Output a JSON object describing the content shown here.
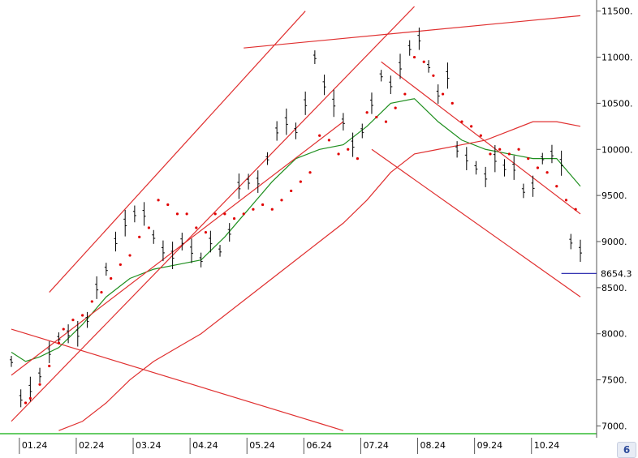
{
  "colors": {
    "price": "#000000",
    "ma_short": "#1f8f1f",
    "ma_long": "#e03030",
    "sar": "#e00000",
    "channel": "#e03030",
    "baseline": "#66cc66",
    "last": "#1a1aa8",
    "axis": "#555555"
  },
  "icons": {
    "corner": "zoom-settings-icon"
  },
  "chart_data": {
    "type": "line",
    "title": "",
    "xlabel": "",
    "ylabel": "",
    "ylim": [
      6960,
      11550
    ],
    "grid": false,
    "x_ticks": [
      "01.24",
      "02.24",
      "03.24",
      "04.24",
      "05.24",
      "06.24",
      "07.24",
      "08.24",
      "09.24",
      "10.24"
    ],
    "y_ticks": [
      "11500.",
      "11000.",
      "10500.",
      "10000.",
      "9500.",
      "9000.",
      "8500.",
      "8000.",
      "7500.",
      "7000."
    ],
    "y_tick_values": [
      11500,
      11000,
      10500,
      10000,
      9500,
      9000,
      8500,
      8000,
      7500,
      7000
    ],
    "last_value_label": "8654.3",
    "last_value": 8654.3,
    "series": [
      {
        "kind": "ohlc-bars",
        "x": [
          0.0,
          0.2,
          0.4,
          0.6,
          0.8,
          1.0,
          1.2,
          1.4,
          1.6,
          1.8,
          2.0,
          2.2,
          2.4,
          2.6,
          2.8,
          3.0,
          3.2,
          3.4,
          3.6,
          3.8,
          4.0,
          4.2,
          4.4,
          4.6,
          4.8,
          5.0,
          5.2,
          5.4,
          5.6,
          5.8,
          6.0,
          6.2,
          6.4,
          6.6,
          6.8,
          7.0,
          7.2,
          7.4,
          7.6,
          7.8,
          8.0,
          8.2,
          8.4,
          8.6,
          8.8,
          9.0,
          9.2,
          9.4,
          9.6,
          9.8,
          10.0,
          10.2,
          10.4,
          10.6,
          10.8,
          11.0,
          11.2,
          11.4,
          11.6,
          11.8,
          12.0
        ],
        "values": [
          7700,
          7300,
          7400,
          7550,
          7800,
          7950,
          8000,
          8000,
          8150,
          8500,
          8700,
          9000,
          9200,
          9300,
          9300,
          9050,
          8900,
          8850,
          9000,
          8900,
          8800,
          9000,
          8900,
          9100,
          9600,
          9650,
          9650,
          9900,
          10200,
          10300,
          10200,
          10500,
          11000,
          10700,
          10500,
          10300,
          10050,
          10200,
          10500,
          10800,
          10700,
          10900,
          11100,
          11200,
          10900,
          10600,
          10800,
          10000,
          9900,
          9800,
          9700,
          9900,
          9800,
          9800,
          9550,
          9600,
          9900,
          9950,
          9850,
          9000,
          8900
        ]
      },
      {
        "kind": "moving-average-short",
        "x": [
          0,
          0.3,
          0.6,
          1.0,
          1.5,
          2.0,
          2.5,
          3.0,
          3.5,
          4.0,
          4.5,
          5.0,
          5.5,
          6.0,
          6.5,
          7.0,
          7.5,
          8.0,
          8.5,
          9.0,
          9.5,
          10.0,
          10.5,
          11.0,
          11.5,
          12.0
        ],
        "values": [
          7800,
          7700,
          7750,
          7850,
          8100,
          8400,
          8600,
          8700,
          8750,
          8800,
          9050,
          9350,
          9650,
          9900,
          10000,
          10050,
          10250,
          10500,
          10550,
          10300,
          10100,
          10000,
          9950,
          9900,
          9900,
          9600
        ]
      },
      {
        "kind": "moving-average-long",
        "x": [
          1.0,
          1.5,
          2.0,
          2.5,
          3.0,
          3.5,
          4.0,
          4.5,
          5.0,
          5.5,
          6.0,
          6.5,
          7.0,
          7.5,
          8.0,
          8.5,
          9.0,
          9.5,
          10.0,
          10.5,
          11.0,
          11.5,
          12.0
        ],
        "values": [
          6950,
          7050,
          7250,
          7500,
          7700,
          7850,
          8000,
          8200,
          8400,
          8600,
          8800,
          9000,
          9200,
          9450,
          9750,
          9950,
          10000,
          10050,
          10100,
          10200,
          10300,
          10300,
          10250
        ]
      },
      {
        "kind": "parabolic-sar",
        "x": [
          0.3,
          0.4,
          0.6,
          0.8,
          1.0,
          1.1,
          1.3,
          1.5,
          1.7,
          1.9,
          2.1,
          2.3,
          2.5,
          2.7,
          2.9,
          3.1,
          3.3,
          3.5,
          3.7,
          3.9,
          4.1,
          4.3,
          4.5,
          4.7,
          4.9,
          5.1,
          5.3,
          5.5,
          5.7,
          5.9,
          6.1,
          6.3,
          6.5,
          6.7,
          6.9,
          7.1,
          7.3,
          7.5,
          7.7,
          7.9,
          8.1,
          8.3,
          8.5,
          8.7,
          8.9,
          9.1,
          9.3,
          9.5,
          9.7,
          9.9,
          10.1,
          10.3,
          10.5,
          10.7,
          10.9,
          11.1,
          11.3,
          11.5,
          11.7,
          11.9
        ],
        "values": [
          7250,
          7300,
          7450,
          7650,
          7900,
          8050,
          8150,
          8200,
          8350,
          8450,
          8600,
          8750,
          8850,
          9050,
          9150,
          9450,
          9400,
          9300,
          9300,
          9150,
          9100,
          9300,
          9300,
          9250,
          9300,
          9350,
          9400,
          9350,
          9450,
          9550,
          9650,
          9750,
          10150,
          10100,
          9950,
          10000,
          9900,
          10400,
          10350,
          10300,
          10450,
          10600,
          11000,
          10950,
          10800,
          10600,
          10500,
          10300,
          10250,
          10150,
          9950,
          10000,
          9950,
          10000,
          9900,
          9800,
          9750,
          9600,
          9450,
          9350
        ]
      },
      {
        "kind": "channel-lines",
        "lines": [
          {
            "x": [
              0.8,
              6.2
            ],
            "values": [
              8450,
              11500
            ]
          },
          {
            "x": [
              0.0,
              8.5
            ],
            "values": [
              7050,
              11550
            ]
          },
          {
            "x": [
              4.9,
              12.0
            ],
            "values": [
              11100,
              11450
            ]
          },
          {
            "x": [
              0.0,
              7.0
            ],
            "values": [
              7550,
              10300
            ]
          },
          {
            "x": [
              7.8,
              12.0
            ],
            "values": [
              10950,
              9300
            ]
          },
          {
            "x": [
              7.6,
              12.0
            ],
            "values": [
              10000,
              8400
            ]
          },
          {
            "x": [
              0.0,
              7.0
            ],
            "values": [
              8050,
              6950
            ]
          }
        ]
      }
    ]
  }
}
